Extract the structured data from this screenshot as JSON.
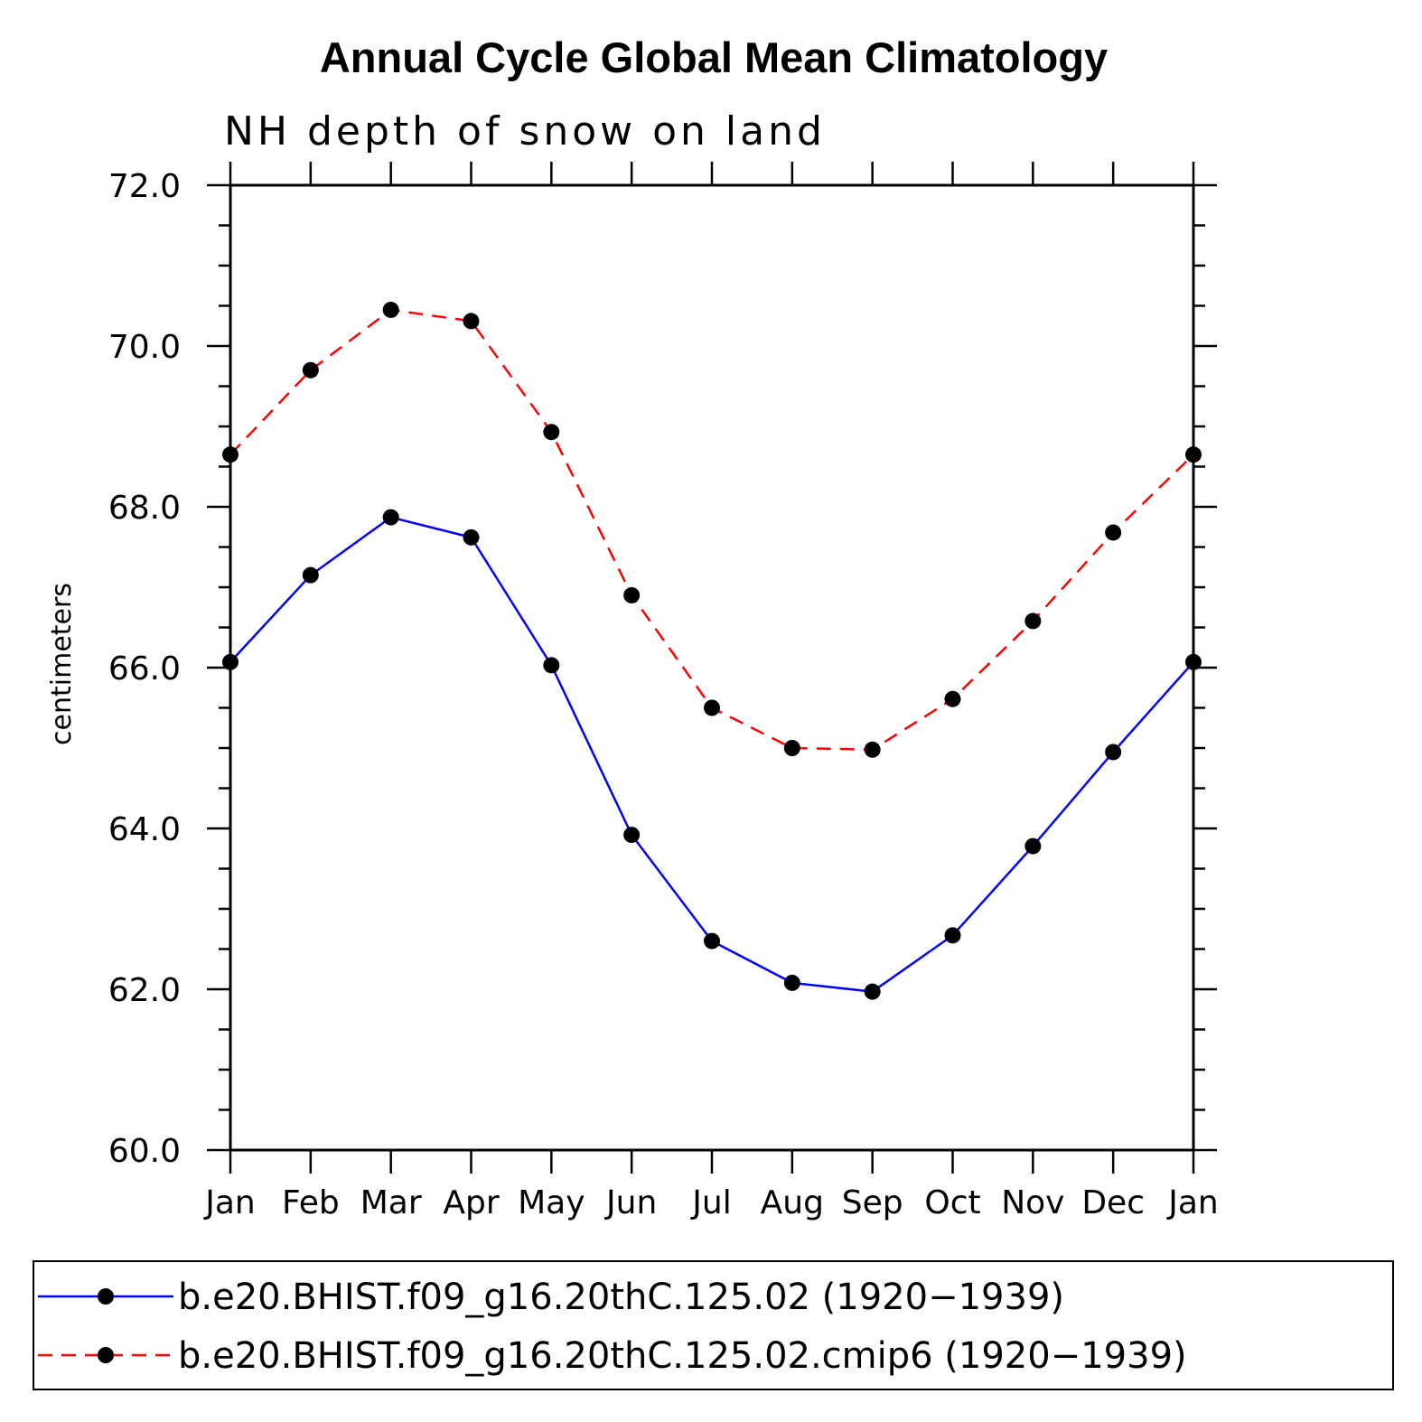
{
  "chart_data": {
    "type": "line",
    "title": "Annual Cycle Global Mean Climatology",
    "subtitle": "NH depth of snow on land",
    "xlabel": "",
    "ylabel": "centimeters",
    "ylim": [
      60.0,
      72.0
    ],
    "yticks": [
      "60.0",
      "62.0",
      "64.0",
      "66.0",
      "68.0",
      "70.0",
      "72.0"
    ],
    "categories": [
      "Jan",
      "Feb",
      "Mar",
      "Apr",
      "May",
      "Jun",
      "Jul",
      "Aug",
      "Sep",
      "Oct",
      "Nov",
      "Dec",
      "Jan"
    ],
    "series": [
      {
        "name": "b.e20.BHIST.f09_g16.20thC.125.02 (1920−1939)",
        "color": "#0000ff",
        "style": "solid",
        "marker": "dot",
        "values": [
          66.07,
          67.15,
          67.87,
          67.62,
          66.03,
          63.92,
          62.6,
          62.08,
          61.97,
          62.67,
          63.78,
          64.95,
          66.07
        ]
      },
      {
        "name": "b.e20.BHIST.f09_g16.20thC.125.02.cmip6 (1920−1939)",
        "color": "#ff0000",
        "style": "dashed",
        "marker": "dot",
        "values": [
          68.65,
          69.7,
          70.45,
          70.31,
          68.93,
          66.9,
          65.5,
          65.0,
          64.98,
          65.61,
          66.58,
          67.68,
          68.65
        ]
      }
    ],
    "grid": false,
    "legend_position": "bottom"
  }
}
